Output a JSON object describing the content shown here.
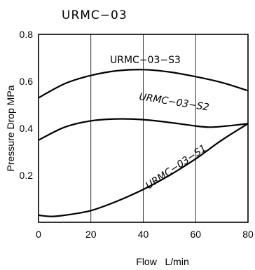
{
  "chart_data": {
    "type": "line",
    "title": "URMC−03",
    "xlabel": "Flow   L/min",
    "ylabel": "Pressure Drop  MPa",
    "xlim": [
      0,
      80
    ],
    "ylim": [
      0,
      0.8
    ],
    "x_ticks": [
      "0",
      "20",
      "40",
      "60",
      "80"
    ],
    "y_ticks": [
      "0.2",
      "0.4",
      "0.6",
      "0.8"
    ],
    "grid": "vertical",
    "series": [
      {
        "name": "URMC−03−S3",
        "x": [
          0,
          10,
          20,
          30,
          40,
          50,
          60,
          70,
          80
        ],
        "y": [
          0.53,
          0.59,
          0.625,
          0.645,
          0.65,
          0.64,
          0.62,
          0.595,
          0.56
        ]
      },
      {
        "name": "URMC−03−S2",
        "x": [
          0,
          10,
          20,
          30,
          40,
          50,
          60,
          65,
          70,
          80
        ],
        "y": [
          0.35,
          0.405,
          0.432,
          0.44,
          0.437,
          0.425,
          0.41,
          0.405,
          0.408,
          0.42
        ]
      },
      {
        "name": "URMC−03−S1",
        "x": [
          0,
          5,
          10,
          20,
          30,
          40,
          50,
          60,
          70,
          80
        ],
        "y": [
          0.03,
          0.025,
          0.03,
          0.05,
          0.09,
          0.14,
          0.2,
          0.27,
          0.35,
          0.42
        ]
      }
    ]
  }
}
